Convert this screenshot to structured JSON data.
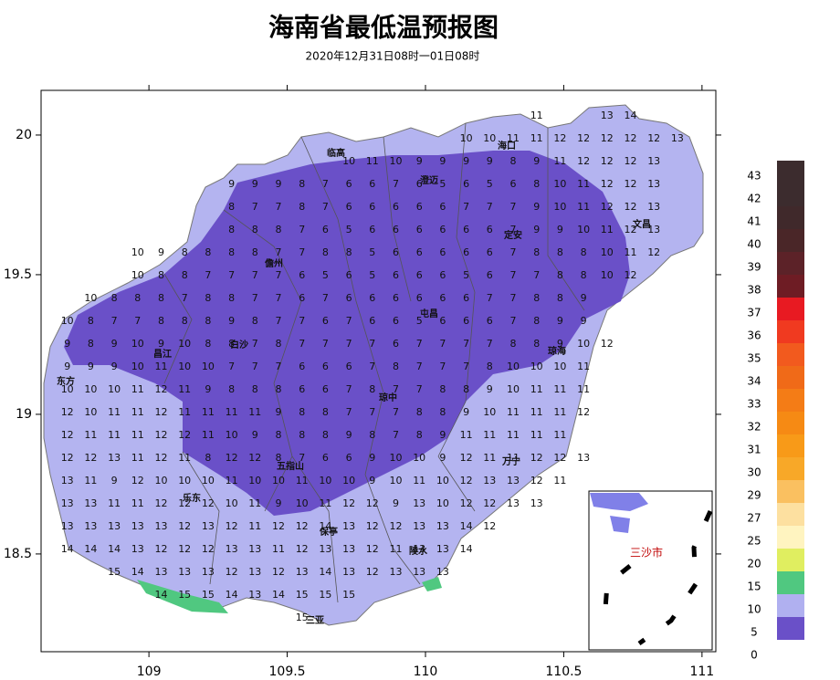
{
  "title": "海南省最低温预报图",
  "subtitle": "2020年12月31日08时一01日08时",
  "map": {
    "xlim": [
      108.61,
      111.05
    ],
    "ylim": [
      18.15,
      20.16
    ],
    "xticks": [
      109,
      109.5,
      110,
      110.5,
      111
    ],
    "yticks": [
      20,
      19.5,
      19,
      18.5
    ],
    "grid_rows": [
      [
        null,
        null,
        null,
        null,
        null,
        null,
        null,
        null,
        null,
        null,
        null,
        null,
        null,
        null,
        null,
        null,
        null,
        null,
        null,
        null,
        null,
        11,
        null,
        null,
        13,
        14,
        null,
        null
      ],
      [
        null,
        null,
        null,
        null,
        null,
        null,
        null,
        null,
        null,
        null,
        null,
        null,
        null,
        null,
        null,
        null,
        null,
        null,
        10,
        10,
        11,
        11,
        12,
        12,
        12,
        12,
        12,
        13
      ],
      [
        null,
        null,
        null,
        null,
        null,
        null,
        null,
        null,
        null,
        null,
        null,
        null,
        null,
        10,
        11,
        10,
        9,
        9,
        9,
        9,
        8,
        9,
        11,
        12,
        12,
        12,
        13,
        null
      ],
      [
        null,
        null,
        null,
        null,
        null,
        null,
        null,
        null,
        9,
        9,
        9,
        8,
        7,
        6,
        6,
        7,
        6,
        5,
        6,
        5,
        6,
        8,
        10,
        11,
        12,
        12,
        13,
        null
      ],
      [
        null,
        null,
        null,
        null,
        null,
        null,
        null,
        null,
        8,
        7,
        7,
        8,
        7,
        6,
        6,
        6,
        6,
        6,
        7,
        7,
        7,
        9,
        10,
        11,
        12,
        12,
        13,
        null
      ],
      [
        null,
        null,
        null,
        null,
        null,
        null,
        null,
        null,
        8,
        8,
        8,
        7,
        6,
        5,
        6,
        6,
        6,
        6,
        6,
        6,
        7,
        9,
        9,
        10,
        11,
        12,
        13,
        null
      ],
      [
        null,
        null,
        null,
        null,
        10,
        9,
        8,
        8,
        8,
        8,
        7,
        7,
        8,
        8,
        5,
        6,
        6,
        6,
        6,
        6,
        7,
        8,
        8,
        8,
        10,
        11,
        12,
        null
      ],
      [
        null,
        null,
        null,
        null,
        10,
        8,
        8,
        7,
        7,
        7,
        7,
        6,
        5,
        6,
        5,
        6,
        6,
        6,
        5,
        6,
        7,
        7,
        8,
        8,
        10,
        12,
        null,
        null
      ],
      [
        null,
        null,
        10,
        8,
        8,
        8,
        7,
        8,
        8,
        7,
        7,
        6,
        7,
        6,
        6,
        6,
        6,
        6,
        6,
        7,
        7,
        8,
        8,
        9,
        null,
        null,
        null,
        null
      ],
      [
        null,
        10,
        8,
        7,
        7,
        8,
        8,
        8,
        9,
        8,
        7,
        7,
        6,
        7,
        6,
        6,
        5,
        6,
        6,
        6,
        7,
        8,
        9,
        9,
        null,
        null,
        null,
        null
      ],
      [
        null,
        9,
        8,
        9,
        10,
        9,
        10,
        8,
        8,
        7,
        8,
        7,
        7,
        7,
        7,
        6,
        7,
        7,
        7,
        7,
        8,
        8,
        9,
        10,
        12,
        null,
        null,
        null
      ],
      [
        null,
        9,
        9,
        9,
        10,
        11,
        10,
        10,
        7,
        7,
        7,
        6,
        6,
        6,
        7,
        8,
        7,
        7,
        7,
        8,
        10,
        10,
        10,
        11,
        null,
        null,
        null,
        null
      ],
      [
        null,
        10,
        10,
        10,
        11,
        12,
        11,
        9,
        8,
        8,
        8,
        6,
        6,
        7,
        8,
        7,
        7,
        8,
        8,
        9,
        10,
        11,
        11,
        11,
        null,
        null,
        null,
        null
      ],
      [
        null,
        12,
        10,
        11,
        11,
        12,
        11,
        11,
        11,
        11,
        9,
        8,
        8,
        7,
        7,
        7,
        8,
        8,
        9,
        10,
        11,
        11,
        11,
        12,
        null,
        null,
        null,
        null
      ],
      [
        null,
        12,
        11,
        11,
        11,
        12,
        12,
        11,
        10,
        9,
        8,
        8,
        8,
        9,
        8,
        7,
        8,
        9,
        11,
        11,
        11,
        11,
        11,
        null,
        null,
        null,
        null,
        null
      ],
      [
        null,
        12,
        12,
        13,
        11,
        12,
        11,
        8,
        12,
        12,
        8,
        7,
        6,
        6,
        9,
        10,
        10,
        9,
        12,
        11,
        11,
        12,
        12,
        13,
        null,
        null,
        null,
        null
      ],
      [
        null,
        13,
        11,
        9,
        12,
        10,
        10,
        10,
        11,
        10,
        10,
        11,
        10,
        10,
        9,
        10,
        11,
        10,
        12,
        13,
        13,
        12,
        11,
        null,
        null,
        null,
        null,
        null
      ],
      [
        null,
        13,
        13,
        11,
        11,
        12,
        12,
        12,
        10,
        11,
        9,
        10,
        11,
        12,
        12,
        9,
        13,
        10,
        12,
        12,
        13,
        13,
        null,
        null,
        null,
        null,
        null,
        null
      ],
      [
        null,
        13,
        13,
        13,
        13,
        13,
        12,
        13,
        12,
        11,
        12,
        12,
        14,
        13,
        12,
        12,
        13,
        13,
        14,
        12,
        null,
        null,
        null,
        null,
        null,
        null,
        null,
        null
      ],
      [
        null,
        14,
        14,
        14,
        13,
        12,
        12,
        12,
        13,
        13,
        11,
        12,
        13,
        13,
        12,
        11,
        13,
        13,
        14,
        null,
        null,
        null,
        null,
        null,
        null,
        null,
        null,
        null
      ],
      [
        null,
        null,
        null,
        15,
        14,
        13,
        13,
        13,
        12,
        13,
        12,
        13,
        14,
        13,
        12,
        13,
        13,
        13,
        null,
        null,
        null,
        null,
        null,
        null,
        null,
        null,
        null,
        null
      ],
      [
        null,
        null,
        null,
        null,
        null,
        14,
        15,
        15,
        14,
        13,
        14,
        15,
        15,
        15,
        null,
        null,
        null,
        null,
        null,
        null,
        null,
        null,
        null,
        null,
        null,
        null,
        null,
        null
      ],
      [
        null,
        null,
        null,
        null,
        null,
        null,
        null,
        null,
        null,
        null,
        null,
        15,
        null,
        null,
        null,
        null,
        null,
        null,
        null,
        null,
        null,
        null,
        null,
        null,
        null,
        null,
        null,
        null
      ]
    ],
    "cities": [
      "临高",
      "海口",
      "澄迈",
      "定安",
      "文昌",
      "儋州",
      "屯昌",
      "琼海",
      "白沙",
      "昌江",
      "东方",
      "琼中",
      "万宁",
      "五指山",
      "乐东",
      "保亭",
      "陵水",
      "三亚"
    ],
    "inset_label": "三沙市"
  },
  "legend": {
    "levels": [
      43,
      42,
      41,
      40,
      39,
      38,
      37,
      36,
      35,
      34,
      33,
      32,
      31,
      30,
      29,
      27,
      25,
      20,
      15,
      10,
      5,
      0
    ],
    "colors": [
      "#3c2c2e",
      "#3c2c2e",
      "#40292b",
      "#4a2628",
      "#5c2228",
      "#6e1c24",
      "#e81a22",
      "#f03a20",
      "#f25a1e",
      "#f06a18",
      "#f47c16",
      "#f68a14",
      "#f89a18",
      "#f8a828",
      "#fac060",
      "#fde0a0",
      "#fff4c0",
      "#e0ee60",
      "#50c880",
      "#b0b0f0",
      "#6a50c8"
    ]
  }
}
